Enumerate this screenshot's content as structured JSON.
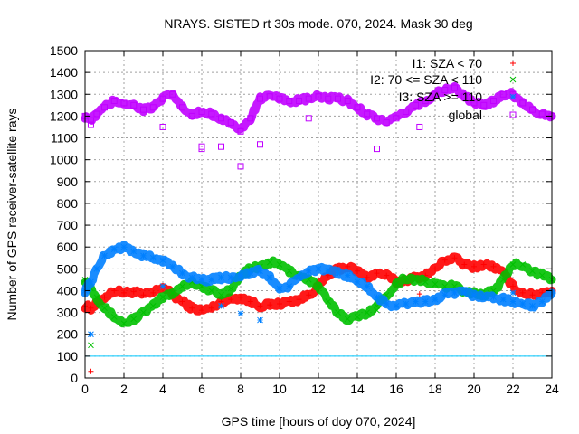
{
  "chart_data": {
    "type": "scatter",
    "title": "NRAYS. SISTED rt 30s mode. 070, 2024. Mask 30 deg",
    "xlabel": "GPS time [hours of doy 070, 2024]",
    "ylabel": "Number of GPS receiver-satellite rays",
    "xlim": [
      0,
      24
    ],
    "ylim": [
      0,
      1500
    ],
    "xticks": [
      "0",
      "2",
      "4",
      "6",
      "8",
      "10",
      "12",
      "14",
      "16",
      "18",
      "20",
      "22",
      "24"
    ],
    "yticks": [
      "0",
      "100",
      "200",
      "300",
      "400",
      "500",
      "600",
      "700",
      "800",
      "900",
      "1000",
      "1100",
      "1200",
      "1300",
      "1400",
      "1500"
    ],
    "grid": true,
    "legend_position": "top-right",
    "reference_line": {
      "y": 100,
      "color": "#00c8ff"
    },
    "series": [
      {
        "name": "I1: SZA < 70",
        "marker": "+",
        "color": "#ff0000",
        "x": [
          0,
          0.3,
          0.6,
          1,
          1.5,
          2,
          2.5,
          3,
          3.5,
          4,
          4.5,
          5,
          5.5,
          6,
          6.5,
          7,
          7.5,
          8,
          8.5,
          9,
          9.5,
          10,
          10.5,
          11,
          11.5,
          12,
          12.5,
          13,
          13.5,
          14,
          14.5,
          15,
          15.5,
          16,
          16.5,
          17,
          17.5,
          18,
          18.5,
          19,
          19.5,
          20,
          20.5,
          21,
          21.5,
          22,
          22.5,
          23,
          23.5,
          24
        ],
        "y": [
          330,
          320,
          340,
          370,
          400,
          390,
          395,
          380,
          390,
          420,
          380,
          350,
          320,
          310,
          320,
          350,
          360,
          370,
          350,
          330,
          335,
          340,
          350,
          360,
          380,
          420,
          470,
          500,
          510,
          490,
          460,
          480,
          470,
          440,
          450,
          460,
          470,
          500,
          540,
          550,
          520,
          510,
          520,
          510,
          480,
          420,
          390,
          380,
          390,
          400
        ],
        "outliers": [
          [
            0.3,
            30
          ],
          [
            17.2,
            385
          ]
        ]
      },
      {
        "name": "I2: 70 <= SZA < 110",
        "marker": "x",
        "color": "#00c000",
        "x": [
          0,
          0.3,
          0.6,
          1,
          1.5,
          2,
          2.5,
          3,
          3.5,
          4,
          4.5,
          5,
          5.5,
          6,
          6.5,
          7,
          7.5,
          8,
          8.5,
          9,
          9.5,
          10,
          10.5,
          11,
          11.5,
          12,
          12.5,
          13,
          13.5,
          14,
          14.5,
          15,
          15.5,
          16,
          16.5,
          17,
          17.5,
          18,
          18.5,
          19,
          19.5,
          20,
          20.5,
          21,
          21.5,
          22,
          22.5,
          23,
          23.5,
          24
        ],
        "y": [
          450,
          410,
          370,
          320,
          280,
          250,
          270,
          300,
          330,
          370,
          390,
          420,
          440,
          420,
          400,
          380,
          410,
          470,
          500,
          510,
          530,
          520,
          490,
          470,
          450,
          420,
          350,
          300,
          270,
          280,
          300,
          330,
          380,
          430,
          460,
          450,
          440,
          430,
          420,
          420,
          400,
          390,
          380,
          400,
          450,
          520,
          520,
          490,
          470,
          450
        ],
        "outliers": [
          [
            0.3,
            150
          ],
          [
            15,
            310
          ]
        ]
      },
      {
        "name": "I3: SZA >= 110",
        "marker": "*",
        "color": "#0080ff",
        "x": [
          0,
          0.3,
          0.6,
          1,
          1.5,
          2,
          2.5,
          3,
          3.5,
          4,
          4.5,
          5,
          5.5,
          6,
          6.5,
          7,
          7.5,
          8,
          8.5,
          9,
          9.5,
          10,
          10.5,
          11,
          11.5,
          12,
          12.5,
          13,
          13.5,
          14,
          14.5,
          15,
          15.5,
          16,
          16.5,
          17,
          17.5,
          18,
          18.5,
          19,
          19.5,
          20,
          20.5,
          21,
          21.5,
          22,
          22.5,
          23,
          23.5,
          24
        ],
        "y": [
          400,
          440,
          500,
          560,
          590,
          600,
          580,
          560,
          550,
          540,
          510,
          480,
          460,
          450,
          450,
          460,
          460,
          470,
          480,
          490,
          460,
          410,
          420,
          460,
          490,
          500,
          490,
          480,
          470,
          440,
          420,
          370,
          340,
          330,
          340,
          350,
          350,
          360,
          380,
          390,
          390,
          380,
          370,
          370,
          360,
          350,
          340,
          330,
          350,
          390
        ],
        "outliers": [
          [
            0.3,
            200
          ],
          [
            4,
            420
          ],
          [
            7,
            330
          ],
          [
            8,
            295
          ],
          [
            9,
            265
          ],
          [
            22,
            390
          ]
        ]
      },
      {
        "name": "global",
        "marker": "square",
        "color": "#c000ff",
        "x": [
          0,
          0.3,
          0.6,
          1,
          1.5,
          2,
          2.5,
          3,
          3.5,
          4,
          4.5,
          5,
          5.5,
          6,
          6.5,
          7,
          7.5,
          8,
          8.5,
          9,
          9.5,
          10,
          10.5,
          11,
          11.5,
          12,
          12.5,
          13,
          13.5,
          14,
          14.5,
          15,
          15.5,
          16,
          16.5,
          17,
          17.5,
          18,
          18.5,
          19,
          19.5,
          20,
          20.5,
          21,
          21.5,
          22,
          22.5,
          23,
          23.5,
          24
        ],
        "y": [
          1200,
          1180,
          1210,
          1240,
          1270,
          1260,
          1250,
          1230,
          1240,
          1280,
          1300,
          1240,
          1200,
          1220,
          1210,
          1190,
          1170,
          1130,
          1190,
          1280,
          1290,
          1280,
          1270,
          1270,
          1280,
          1290,
          1280,
          1280,
          1270,
          1240,
          1210,
          1190,
          1170,
          1190,
          1220,
          1250,
          1270,
          1300,
          1320,
          1330,
          1290,
          1260,
          1250,
          1270,
          1300,
          1300,
          1260,
          1230,
          1210,
          1200
        ],
        "outliers": [
          [
            0.3,
            1160
          ],
          [
            4,
            1150
          ],
          [
            6,
            1060
          ],
          [
            6,
            1050
          ],
          [
            7,
            1060
          ],
          [
            8,
            970
          ],
          [
            9,
            1070
          ],
          [
            11.5,
            1190
          ],
          [
            15,
            1050
          ],
          [
            17.2,
            1150
          ]
        ]
      }
    ]
  }
}
